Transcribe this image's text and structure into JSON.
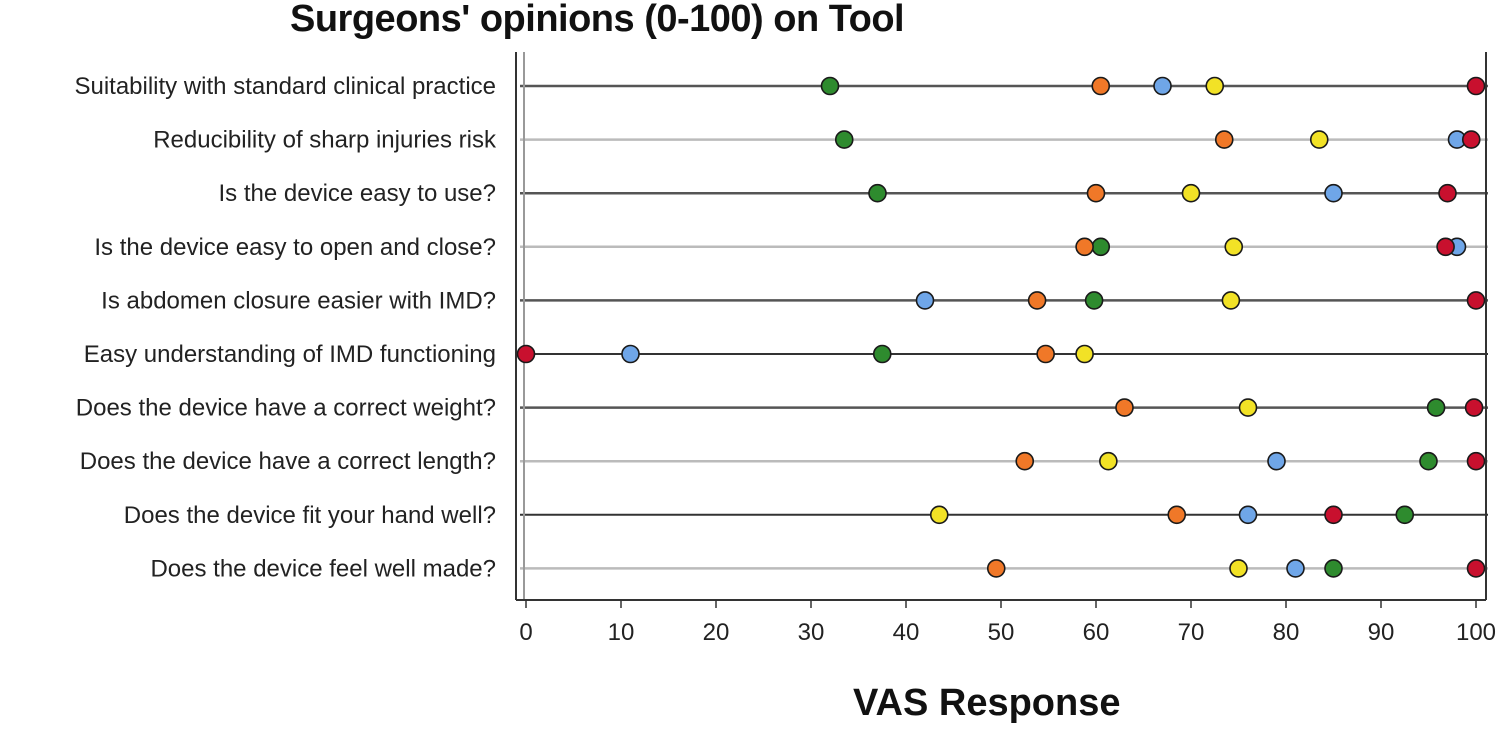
{
  "chart_data": {
    "type": "scatter",
    "title": "Surgeons' opinions (0-100) on Tool",
    "xlabel": "VAS Response",
    "ylabel": "",
    "xlim": [
      0,
      100
    ],
    "xticks": [
      "0",
      "10",
      "20",
      "30",
      "40",
      "50",
      "60",
      "70",
      "80",
      "90",
      "100"
    ],
    "categories": [
      "Suitability with standard clinical practice",
      "Reducibility of sharp injuries risk",
      "Is the device easy to use?",
      "Is the device easy to open and close?",
      "Is abdomen closure easier with IMD?",
      "Easy understanding of IMD functioning",
      "Does the device have a correct weight?",
      "Does the device have a correct length?",
      "Does the device fit your hand well?",
      "Does the device feel well made?"
    ],
    "series": [
      {
        "color": "#2e8b2e",
        "values": [
          32,
          33.5,
          37,
          60.5,
          59.8,
          37.5,
          95.8,
          95,
          92.5,
          85
        ]
      },
      {
        "color": "#f07828",
        "values": [
          60.5,
          73.5,
          60,
          58.8,
          53.8,
          54.7,
          63,
          52.5,
          68.5,
          49.5
        ]
      },
      {
        "color": "#6fa6e8",
        "values": [
          67,
          98,
          85,
          98,
          42,
          11,
          null,
          79,
          76,
          81
        ]
      },
      {
        "color": "#f2e226",
        "values": [
          72.5,
          83.5,
          70,
          74.5,
          74.2,
          58.8,
          76,
          61.3,
          43.5,
          75
        ]
      },
      {
        "color": "#c8102e",
        "values": [
          100,
          99.5,
          97,
          96.8,
          100,
          0,
          99.8,
          100,
          85,
          100
        ]
      }
    ],
    "grid": false
  }
}
